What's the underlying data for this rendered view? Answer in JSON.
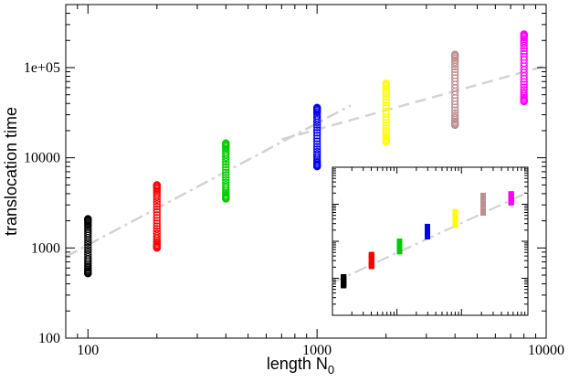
{
  "chart_data": [
    {
      "type": "scatter",
      "xscale": "log",
      "yscale": "log",
      "xlim": [
        80,
        10000
      ],
      "ylim": [
        100,
        500000
      ],
      "xlabel_main": "length N",
      "xlabel_sub": "0",
      "ylabel": "translocation time",
      "x_ticks": [
        {
          "value": 100,
          "label": "100"
        },
        {
          "value": 1000,
          "label": "1000"
        },
        {
          "value": 10000,
          "label": "10000"
        }
      ],
      "y_ticks": [
        {
          "value": 100,
          "label": "100"
        },
        {
          "value": 1000,
          "label": "1000"
        },
        {
          "value": 10000,
          "label": "10000"
        },
        {
          "value": 100000,
          "label": "1e+05"
        }
      ],
      "grid": false,
      "legend": "none",
      "series": [
        {
          "x": 100,
          "color": "#000000",
          "marker": "circle",
          "ymin": 520,
          "ymax": 2100,
          "n": 36
        },
        {
          "x": 200,
          "color": "#ff0000",
          "marker": "circle",
          "ymin": 1000,
          "ymax": 5000,
          "n": 36
        },
        {
          "x": 400,
          "color": "#00cc00",
          "marker": "circle",
          "ymin": 3500,
          "ymax": 14500,
          "n": 34
        },
        {
          "x": 1000,
          "color": "#0000ee",
          "marker": "circle",
          "ymin": 8000,
          "ymax": 36000,
          "n": 34
        },
        {
          "x": 2000,
          "color": "#ffff00",
          "marker": "circle",
          "ymin": 15000,
          "ymax": 67000,
          "n": 32
        },
        {
          "x": 4000,
          "color": "#bc8f8f",
          "marker": "circle",
          "ymin": 23000,
          "ymax": 140000,
          "n": 34
        },
        {
          "x": 8000,
          "color": "#ff00ff",
          "marker": "circle",
          "ymin": 42000,
          "ymax": 235000,
          "n": 34
        }
      ],
      "fits": [
        {
          "style": "dash-dot",
          "color": "#d3d3d3",
          "points": [
            [
              80,
              800
            ],
            [
              1400,
              38000
            ]
          ]
        },
        {
          "style": "dashed",
          "color": "#d3d3d3",
          "points": [
            [
              700,
              16000
            ],
            [
              10000,
              105000
            ]
          ]
        }
      ]
    },
    {
      "type": "scatter",
      "role": "inset",
      "xscale": "log",
      "yscale": "log",
      "ticks_labeled": false,
      "grid": false,
      "legend": "none",
      "series": [
        {
          "x": 1,
          "color": "#000000",
          "marker": "square",
          "ymin": 0.2,
          "ymax": 0.26,
          "n": 24
        },
        {
          "x": 2,
          "color": "#ff0000",
          "marker": "square",
          "ymin": 0.33,
          "ymax": 0.41,
          "n": 24
        },
        {
          "x": 3,
          "color": "#00cc00",
          "marker": "square",
          "ymin": 0.43,
          "ymax": 0.5,
          "n": 24
        },
        {
          "x": 4,
          "color": "#0000ee",
          "marker": "square",
          "ymin": 0.53,
          "ymax": 0.6,
          "n": 24
        },
        {
          "x": 5,
          "color": "#ffff00",
          "marker": "square",
          "ymin": 0.61,
          "ymax": 0.7,
          "n": 24
        },
        {
          "x": 6,
          "color": "#bc8f8f",
          "marker": "square",
          "ymin": 0.69,
          "ymax": 0.81,
          "n": 24
        },
        {
          "x": 7,
          "color": "#ff00ff",
          "marker": "square",
          "ymin": 0.76,
          "ymax": 0.82,
          "n": 24
        }
      ],
      "fits": [
        {
          "style": "dash-dot",
          "color": "#d3d3d3",
          "points": [
            [
              0.6,
              0.22
            ],
            [
              7.6,
              0.83
            ]
          ]
        }
      ]
    }
  ]
}
